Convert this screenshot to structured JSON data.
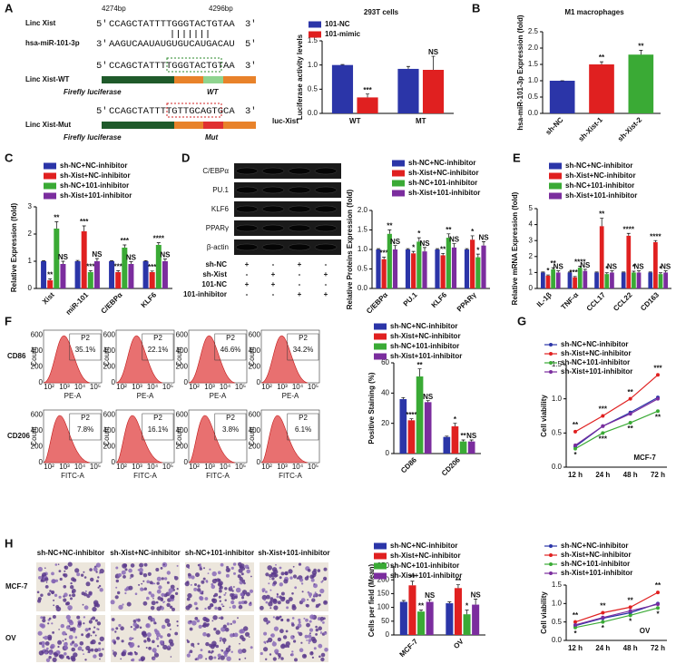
{
  "panels": [
    "A",
    "B",
    "C",
    "D",
    "E",
    "F",
    "G",
    "H"
  ],
  "sequences": {
    "start": "4274bp",
    "end": "4296bp",
    "rows": [
      {
        "label": "Linc Xist",
        "left": "5'",
        "seq": "CCAGCTATTTTGGGTACTGTAA",
        "right": "3'"
      },
      {
        "label": "hsa-miR-101-3p",
        "left": "3'",
        "seq": "AAGUCAAUAUGUGUCAUGACAU",
        "right": "5'"
      }
    ],
    "constructs": [
      {
        "label": "Linc Xist-WT",
        "left": "5'",
        "seq": "CCAGCTATTTTGGGTACTGTAA",
        "right": "3'",
        "gene": "Firefly luciferase",
        "site": "WT"
      },
      {
        "label": "Linc Xist-Mut",
        "left": "5'",
        "seq": "CCAGCTATTTTGTTGCAGTGCA",
        "right": "3'",
        "gene": "Firefly luciferase",
        "site": "Mut"
      }
    ]
  },
  "blot": {
    "bands": [
      "C/EBPα",
      "PU.1",
      "KLF6",
      "PPARγ",
      "β-actin"
    ],
    "conditions": [
      {
        "label": "sh-NC",
        "signs": [
          "+",
          "-",
          "+",
          "-"
        ]
      },
      {
        "label": "sh-Xist",
        "signs": [
          "-",
          "+",
          "-",
          "+"
        ]
      },
      {
        "label": "101-NC",
        "signs": [
          "+",
          "+",
          "-",
          "-"
        ]
      },
      {
        "label": "101-inhibitor",
        "signs": [
          "-",
          "-",
          "+",
          "+"
        ]
      }
    ]
  },
  "flow": {
    "ylabel": "Count",
    "xticks": [
      "10²",
      "10³",
      "10⁴",
      "10⁵"
    ],
    "yticks": [
      "0",
      "200",
      "400",
      "600"
    ],
    "rows": [
      {
        "label": "CD86",
        "axis": "PE-A",
        "gate": "P2",
        "percents": [
          "35.1%",
          "22.1%",
          "46.6%",
          "34.2%"
        ]
      },
      {
        "label": "CD206",
        "axis": "FITC-A",
        "gate": "P2",
        "percents": [
          "7.8%",
          "16.1%",
          "3.8%",
          "6.1%"
        ]
      }
    ]
  },
  "images": {
    "columns": [
      "sh-NC+NC-inhibitor",
      "sh-Xist+NC-inhibitor",
      "sh-NC+101-inhibitor",
      "sh-Xist+101-inhibitor"
    ],
    "rows": [
      "MCF-7",
      "OV"
    ]
  },
  "chart_data": [
    {
      "type": "bar",
      "title": "293T cells",
      "ylabel": "Luciferase activity levels",
      "xlabel": "luc-Xist",
      "categories": [
        "WT",
        "MT"
      ],
      "series": [
        {
          "name": "101-NC",
          "color": "#2b35a8",
          "values": [
            1.0,
            0.92
          ],
          "errors": [
            0.01,
            0.05
          ]
        },
        {
          "name": "101-mimic",
          "color": "#e02020",
          "values": [
            0.33,
            0.9
          ],
          "errors": [
            0.07,
            0.28
          ],
          "significance": [
            "***",
            "NS"
          ]
        }
      ],
      "ylim": [
        0,
        1.5
      ],
      "yticks": [
        {
          "value": 0,
          "label": "0.0"
        },
        {
          "value": 0.5,
          "label": "0.5"
        },
        {
          "value": 1,
          "label": "1.0"
        },
        {
          "value": 1.5,
          "label": "1.5"
        }
      ]
    },
    {
      "type": "bar",
      "title": "M1 macrophages",
      "ylabel": "hsa-miR-101-3p Expression (fold)",
      "categories": [
        "sh-NC",
        "sh-Xist-1",
        "sh-Xist-2"
      ],
      "values": [
        1.0,
        1.5,
        1.8
      ],
      "errors": [
        0,
        0.08,
        0.13
      ],
      "colors": [
        "#2b35a8",
        "#e02020",
        "#3aaa35"
      ],
      "significance": [
        null,
        "**",
        "**"
      ],
      "ylim": [
        0,
        2.5
      ],
      "yticks": [
        {
          "value": 0,
          "label": "0.0"
        },
        {
          "value": 0.5,
          "label": "0.5"
        },
        {
          "value": 1,
          "label": "1.0"
        },
        {
          "value": 1.5,
          "label": "1.5"
        },
        {
          "value": 2,
          "label": "2.0"
        },
        {
          "value": 2.5,
          "label": "2.5"
        }
      ]
    },
    {
      "type": "bar",
      "ylabel": "Relative Expression (fold)",
      "categories": [
        "Xist",
        "miR-101",
        "C/EBPα",
        "KLF6"
      ],
      "series": [
        {
          "name": "sh-NC+NC-inhibitor",
          "color": "#2b35a8",
          "values": [
            1,
            1,
            1,
            1
          ],
          "errors": [
            0.02,
            0.03,
            0.02,
            0.02
          ]
        },
        {
          "name": "sh-Xist+NC-inhibitor",
          "color": "#e02020",
          "values": [
            0.3,
            2.1,
            0.6,
            0.6
          ],
          "errors": [
            0.05,
            0.2,
            0.05,
            0.04
          ],
          "significance": [
            "**",
            "***",
            "***",
            "***"
          ]
        },
        {
          "name": "sh-NC+101-inhibitor",
          "color": "#3aaa35",
          "values": [
            2.2,
            0.6,
            1.5,
            1.6
          ],
          "errors": [
            0.25,
            0.05,
            0.1,
            0.08
          ],
          "significance": [
            "**",
            "***",
            "***",
            "****"
          ]
        },
        {
          "name": "sh-Xist+101-inhibitor",
          "color": "#7b2d9e",
          "values": [
            0.9,
            1.0,
            0.9,
            1.0
          ],
          "errors": [
            0.1,
            0.1,
            0.08,
            0.08
          ],
          "significance": [
            "NS",
            "NS",
            "NS",
            "NS"
          ]
        }
      ],
      "ylim": [
        0,
        3
      ],
      "yticks": [
        0,
        1,
        2,
        3
      ]
    },
    {
      "type": "bar",
      "ylabel": "Relative Proteins Expression (fold)",
      "categories": [
        "C/EBPα",
        "PU.1",
        "KLF6",
        "PPARγ"
      ],
      "series": [
        {
          "name": "sh-NC+NC-inhibitor",
          "color": "#2b35a8",
          "values": [
            1,
            1,
            1,
            1
          ],
          "errors": [
            0.02,
            0.02,
            0.02,
            0.02
          ]
        },
        {
          "name": "sh-Xist+NC-inhibitor",
          "color": "#e02020",
          "values": [
            0.75,
            0.9,
            0.85,
            1.25
          ],
          "errors": [
            0.05,
            0.05,
            0.05,
            0.1
          ],
          "significance": [
            "***",
            "*",
            "**",
            "*"
          ]
        },
        {
          "name": "sh-NC+101-inhibitor",
          "color": "#3aaa35",
          "values": [
            1.4,
            1.2,
            1.3,
            0.8
          ],
          "errors": [
            0.1,
            0.1,
            0.1,
            0.08
          ],
          "significance": [
            "**",
            "*",
            "**",
            "*"
          ]
        },
        {
          "name": "sh-Xist+101-inhibitor",
          "color": "#7b2d9e",
          "values": [
            1.0,
            0.95,
            1.05,
            1.1
          ],
          "errors": [
            0.1,
            0.1,
            0.1,
            0.1
          ],
          "significance": [
            "NS",
            "NS",
            "NS",
            "NS"
          ]
        }
      ],
      "ylim": [
        0,
        2
      ],
      "yticks": [
        {
          "value": 0,
          "label": "0.0"
        },
        {
          "value": 0.5,
          "label": "0.5"
        },
        {
          "value": 1,
          "label": "1.0"
        },
        {
          "value": 1.5,
          "label": "1.5"
        },
        {
          "value": 2,
          "label": "2.0"
        }
      ]
    },
    {
      "type": "bar",
      "ylabel": "Relative mRNA Expression (fold)",
      "categories": [
        "IL-1β",
        "TNF-α",
        "CCL17",
        "CCL22",
        "CD163"
      ],
      "series": [
        {
          "name": "sh-NC+NC-inhibitor",
          "color": "#2b35a8",
          "values": [
            1,
            1,
            1,
            1,
            1
          ],
          "errors": [
            0.03,
            0.03,
            0.03,
            0.03,
            0.03
          ]
        },
        {
          "name": "sh-Xist+NC-inhibitor",
          "color": "#e02020",
          "values": [
            0.8,
            0.7,
            3.9,
            3.3,
            2.9
          ],
          "errors": [
            0.05,
            0.05,
            0.5,
            0.15,
            0.1
          ],
          "significance": [
            "*",
            "****",
            "**",
            "****",
            "****"
          ]
        },
        {
          "name": "sh-NC+101-inhibitor",
          "color": "#3aaa35",
          "values": [
            1.2,
            1.3,
            0.9,
            1.0,
            0.9
          ],
          "errors": [
            0.1,
            0.1,
            0.08,
            0.08,
            0.08
          ],
          "significance": [
            "**",
            "****",
            "*",
            "*",
            "*"
          ]
        },
        {
          "name": "sh-Xist+101-inhibitor",
          "color": "#7b2d9e",
          "values": [
            1.0,
            1.1,
            1.0,
            1.0,
            1.0
          ],
          "errors": [
            0.1,
            0.1,
            0.1,
            0.1,
            0.1
          ],
          "significance": [
            "NS",
            "NS",
            "NS",
            "NS",
            "NS"
          ]
        }
      ],
      "ylim": [
        0,
        5
      ],
      "yticks": [
        0,
        1,
        2,
        3,
        4,
        5
      ]
    },
    {
      "type": "bar",
      "ylabel": "Positive Staining (%)",
      "categories": [
        "CD86",
        "CD206"
      ],
      "series": [
        {
          "name": "sh-NC+NC-inhibitor",
          "color": "#2b35a8",
          "values": [
            36,
            11
          ],
          "errors": [
            1,
            0.5
          ]
        },
        {
          "name": "sh-Xist+NC-inhibitor",
          "color": "#e02020",
          "values": [
            22,
            18
          ],
          "errors": [
            1,
            2
          ],
          "significance": [
            "****",
            "*"
          ]
        },
        {
          "name": "sh-NC+101-inhibitor",
          "color": "#3aaa35",
          "values": [
            51,
            8
          ],
          "errors": [
            5,
            1
          ],
          "significance": [
            "**",
            "**"
          ]
        },
        {
          "name": "sh-Xist+101-inhibitor",
          "color": "#7b2d9e",
          "values": [
            34,
            8
          ],
          "errors": [
            1,
            1
          ],
          "significance": [
            "NS",
            "NS"
          ]
        }
      ],
      "ylim": [
        0,
        60
      ],
      "yticks": [
        0,
        20,
        40,
        60
      ]
    },
    {
      "type": "line",
      "ylabel": "Cell viability",
      "annotation": "MCF-7",
      "categories": [
        "12 h",
        "24 h",
        "48 h",
        "72 h"
      ],
      "series": [
        {
          "name": "sh-NC+NC-inhibitor",
          "color": "#2b35a8",
          "values": [
            0.3,
            0.6,
            0.8,
            1.02
          ]
        },
        {
          "name": "sh-Xist+NC-inhibitor",
          "color": "#e02020",
          "values": [
            0.52,
            0.75,
            1.0,
            1.35
          ],
          "significance": [
            "**",
            "***",
            "**",
            "***"
          ]
        },
        {
          "name": "sh-NC+101-inhibitor",
          "color": "#3aaa35",
          "values": [
            0.27,
            0.5,
            0.65,
            0.82
          ],
          "significance": [
            "*",
            "***",
            "**",
            "**"
          ]
        },
        {
          "name": "sh-Xist+101-inhibitor",
          "color": "#7b2d9e",
          "values": [
            0.32,
            0.6,
            0.78,
            1.0
          ]
        }
      ],
      "ylim": [
        0,
        1.5
      ],
      "yticks": [
        {
          "value": 0,
          "label": "0.0"
        },
        {
          "value": 0.5,
          "label": "0.5"
        },
        {
          "value": 1,
          "label": "1.0"
        },
        {
          "value": 1.5,
          "label": "1.5"
        }
      ]
    },
    {
      "type": "bar",
      "ylabel": "Cells per field (Mean)",
      "categories": [
        "MCF-7",
        "OV"
      ],
      "series": [
        {
          "name": "sh-NC+NC-inhibitor",
          "color": "#2b35a8",
          "values": [
            120,
            115
          ],
          "errors": [
            5,
            5
          ]
        },
        {
          "name": "sh-Xist+NC-inhibitor",
          "color": "#e02020",
          "values": [
            180,
            170
          ],
          "errors": [
            15,
            12
          ],
          "significance": [
            "**",
            "**"
          ]
        },
        {
          "name": "sh-NC+101-inhibitor",
          "color": "#3aaa35",
          "values": [
            85,
            75
          ],
          "errors": [
            5,
            15
          ],
          "significance": [
            "**",
            "*"
          ]
        },
        {
          "name": "sh-Xist+101-inhibitor",
          "color": "#7b2d9e",
          "values": [
            120,
            110
          ],
          "errors": [
            8,
            20
          ],
          "significance": [
            "NS",
            "NS"
          ]
        }
      ],
      "ylim": [
        0,
        250
      ],
      "yticks": [
        0,
        50,
        100,
        150,
        200,
        250
      ]
    },
    {
      "type": "line",
      "ylabel": "Cell viability",
      "annotation": "OV",
      "categories": [
        "12 h",
        "24 h",
        "48 h",
        "72 h"
      ],
      "series": [
        {
          "name": "sh-NC+NC-inhibitor",
          "color": "#2b35a8",
          "values": [
            0.4,
            0.6,
            0.75,
            1.0
          ]
        },
        {
          "name": "sh-Xist+NC-inhibitor",
          "color": "#e02020",
          "values": [
            0.5,
            0.75,
            0.9,
            1.3
          ],
          "significance": [
            "**",
            "**",
            "**",
            "**"
          ]
        },
        {
          "name": "sh-NC+101-inhibitor",
          "color": "#3aaa35",
          "values": [
            0.35,
            0.5,
            0.68,
            0.88
          ],
          "significance": [
            "*",
            "*",
            "*",
            "*"
          ]
        },
        {
          "name": "sh-Xist+101-inhibitor",
          "color": "#7b2d9e",
          "values": [
            0.42,
            0.62,
            0.8,
            0.98
          ]
        }
      ],
      "ylim": [
        0,
        1.5
      ],
      "yticks": [
        {
          "value": 0,
          "label": "0.0"
        },
        {
          "value": 0.5,
          "label": "0.5"
        },
        {
          "value": 1,
          "label": "1.0"
        },
        {
          "value": 1.5,
          "label": "1.5"
        }
      ]
    }
  ]
}
